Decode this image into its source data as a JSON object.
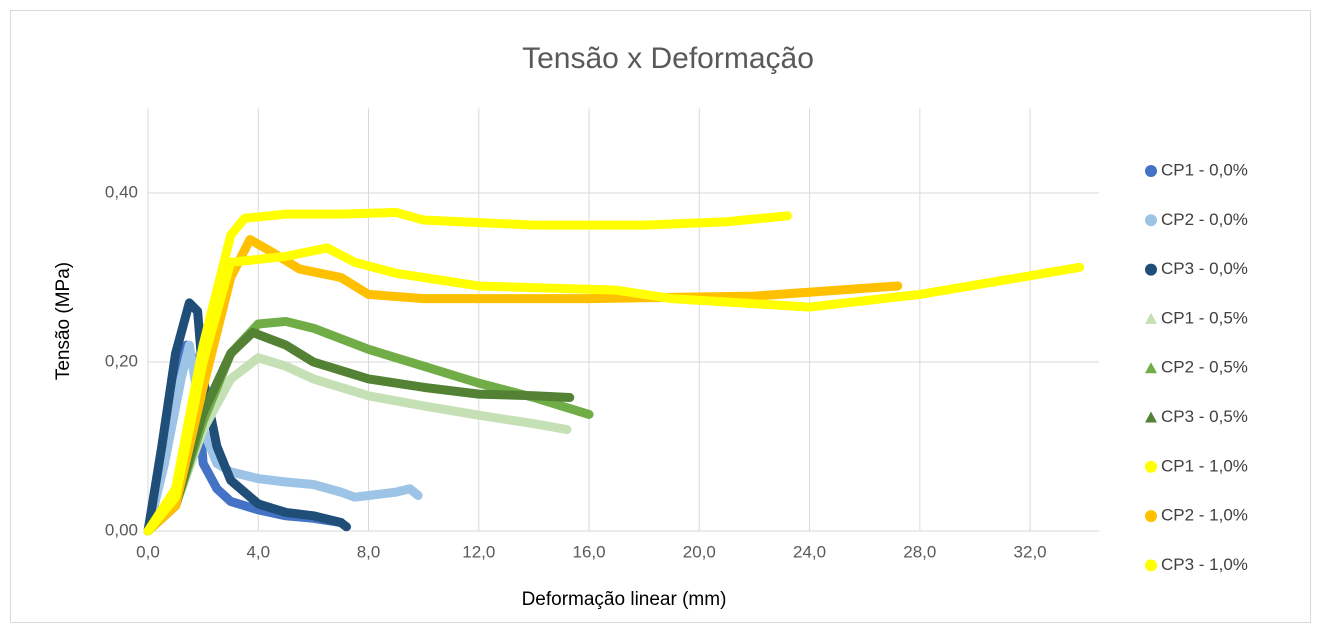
{
  "chart_data": {
    "type": "line",
    "title": "Tensão x Deformação",
    "x_label": "Deformação linear (mm)",
    "y_label": "Tensão (MPa)",
    "xlim": [
      0,
      34.5
    ],
    "ylim": [
      0,
      0.5
    ],
    "xticks": [
      {
        "value": 0,
        "label": "0,0"
      },
      {
        "value": 4,
        "label": "4,0"
      },
      {
        "value": 8,
        "label": "8,0"
      },
      {
        "value": 12,
        "label": "12,0"
      },
      {
        "value": 16,
        "label": "16,0"
      },
      {
        "value": 20,
        "label": "20,0"
      },
      {
        "value": 24,
        "label": "24,0"
      },
      {
        "value": 28,
        "label": "28,0"
      },
      {
        "value": 32,
        "label": "32,0"
      }
    ],
    "yticks": [
      {
        "value": 0,
        "label": "0,00"
      },
      {
        "value": 0.2,
        "label": "0,20"
      },
      {
        "value": 0.4,
        "label": "0,40"
      }
    ],
    "grid": true,
    "legend": "right",
    "series": [
      {
        "name": "CP1 - 0,0%",
        "color": "#4472c4",
        "marker": "circle",
        "x": [
          0,
          0.5,
          1.0,
          1.4,
          1.7,
          2.0,
          2.5,
          3.0,
          4.0,
          5.0,
          6.0,
          7.0
        ],
        "values": [
          0,
          0.08,
          0.17,
          0.22,
          0.2,
          0.08,
          0.05,
          0.035,
          0.025,
          0.018,
          0.015,
          0.01
        ]
      },
      {
        "name": "CP2 - 0,0%",
        "color": "#9dc3e6",
        "marker": "circle",
        "x": [
          0,
          0.6,
          1.2,
          1.5,
          2.0,
          2.5,
          3.0,
          4.0,
          5.0,
          6.0,
          7.0,
          7.5,
          8.0,
          9.0,
          9.5,
          9.8
        ],
        "values": [
          0,
          0.08,
          0.18,
          0.22,
          0.12,
          0.08,
          0.07,
          0.062,
          0.058,
          0.055,
          0.046,
          0.04,
          0.042,
          0.046,
          0.05,
          0.042
        ]
      },
      {
        "name": "CP3 - 0,0%",
        "color": "#1f4e79",
        "marker": "circle",
        "x": [
          0,
          0.5,
          1.0,
          1.5,
          1.8,
          2.0,
          2.5,
          3.0,
          4.0,
          5.0,
          6.0,
          7.0,
          7.2
        ],
        "values": [
          0,
          0.1,
          0.21,
          0.27,
          0.26,
          0.18,
          0.1,
          0.06,
          0.032,
          0.022,
          0.018,
          0.01,
          0.005
        ]
      },
      {
        "name": "CP1 - 0,5%",
        "color": "#c5e0b4",
        "marker": "triangle",
        "x": [
          0,
          1,
          2,
          3,
          4,
          5,
          6,
          8,
          10,
          12,
          14,
          15.2
        ],
        "values": [
          0,
          0.03,
          0.12,
          0.18,
          0.205,
          0.195,
          0.18,
          0.16,
          0.148,
          0.137,
          0.127,
          0.12
        ]
      },
      {
        "name": "CP2 - 0,5%",
        "color": "#70ad47",
        "marker": "triangle",
        "x": [
          0,
          1,
          2,
          3,
          4,
          5,
          6,
          8,
          10,
          12,
          14,
          16
        ],
        "values": [
          0,
          0.03,
          0.13,
          0.21,
          0.245,
          0.248,
          0.24,
          0.215,
          0.195,
          0.175,
          0.158,
          0.138
        ]
      },
      {
        "name": "CP3 - 0,5%",
        "color": "#548235",
        "marker": "triangle",
        "x": [
          0,
          1,
          2,
          3,
          3.8,
          5,
          6,
          8,
          10,
          12,
          14,
          15.3
        ],
        "values": [
          0,
          0.03,
          0.14,
          0.21,
          0.235,
          0.22,
          0.2,
          0.18,
          0.17,
          0.162,
          0.16,
          0.158
        ]
      },
      {
        "name": "CP1 - 1,0%",
        "color": "#ffff00",
        "marker": "circle",
        "x": [
          0,
          1,
          2,
          3,
          3.5,
          5,
          7,
          9,
          10,
          14,
          18,
          21,
          23.2
        ],
        "values": [
          0,
          0.05,
          0.22,
          0.35,
          0.37,
          0.375,
          0.375,
          0.377,
          0.368,
          0.362,
          0.362,
          0.366,
          0.373
        ]
      },
      {
        "name": "CP2 - 1,0%",
        "color": "#ffc000",
        "marker": "circle",
        "x": [
          0,
          1,
          2,
          3,
          3.7,
          4.5,
          5.5,
          7,
          8,
          10,
          16,
          22,
          27.2
        ],
        "values": [
          0,
          0.03,
          0.17,
          0.3,
          0.345,
          0.33,
          0.31,
          0.3,
          0.28,
          0.275,
          0.275,
          0.278,
          0.29
        ]
      },
      {
        "name": "CP3 - 1,0%",
        "color": "#ffff00",
        "marker": "circle",
        "x": [
          0,
          1,
          2,
          3,
          5,
          6.5,
          7.5,
          9,
          12,
          17,
          19,
          24,
          28,
          33.8
        ],
        "values": [
          0,
          0.04,
          0.2,
          0.318,
          0.325,
          0.335,
          0.318,
          0.305,
          0.29,
          0.285,
          0.275,
          0.265,
          0.28,
          0.312
        ]
      }
    ]
  }
}
